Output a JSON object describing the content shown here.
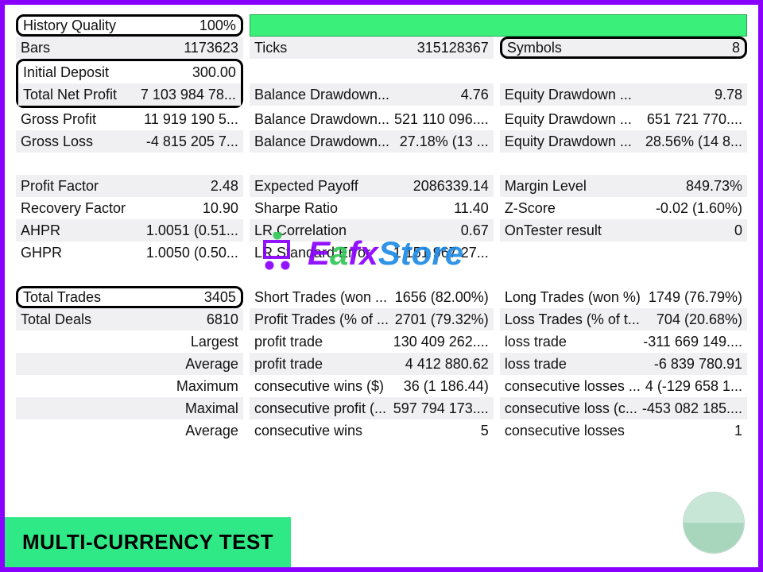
{
  "colors": {
    "border": "#8a00ff",
    "badge_bg": "#2fe986",
    "green_bar_bg": "#3bf07a",
    "green_bar_border": "#1fa84e",
    "alt_row": "#f0f0f2",
    "highlight_border": "#000000"
  },
  "header": {
    "history_quality": {
      "label": "History Quality",
      "value": "100%"
    },
    "bars": {
      "label": "Bars",
      "value": "1173623"
    },
    "ticks": {
      "label": "Ticks",
      "value": "315128367"
    },
    "symbols": {
      "label": "Symbols",
      "value": "8"
    }
  },
  "deposit": {
    "initial": {
      "label": "Initial Deposit",
      "value": "300.00"
    },
    "total_net_profit": {
      "label": "Total Net Profit",
      "value": "7 103 984 78..."
    },
    "balance_dd_1": {
      "label": "Balance Drawdown...",
      "value": "4.76"
    },
    "equity_dd_1": {
      "label": "Equity Drawdown ...",
      "value": "9.78"
    },
    "gross_profit": {
      "label": "Gross Profit",
      "value": "11 919 190 5..."
    },
    "balance_dd_2": {
      "label": "Balance Drawdown...",
      "value": "521 110 096...."
    },
    "equity_dd_2": {
      "label": "Equity Drawdown ...",
      "value": "651 721 770...."
    },
    "gross_loss": {
      "label": "Gross Loss",
      "value": "-4 815 205 7..."
    },
    "balance_dd_3": {
      "label": "Balance Drawdown...",
      "value": "27.18% (13 ..."
    },
    "equity_dd_3": {
      "label": "Equity Drawdown ...",
      "value": "28.56% (14 8..."
    }
  },
  "stats": {
    "profit_factor": {
      "label": "Profit Factor",
      "value": "2.48"
    },
    "expected_payoff": {
      "label": "Expected Payoff",
      "value": "2086339.14"
    },
    "margin_level": {
      "label": "Margin Level",
      "value": "849.73%"
    },
    "recovery_factor": {
      "label": "Recovery Factor",
      "value": "10.90"
    },
    "sharpe_ratio": {
      "label": "Sharpe Ratio",
      "value": "11.40"
    },
    "z_score": {
      "label": "Z-Score",
      "value": "-0.02 (1.60%)"
    },
    "ahpr": {
      "label": "AHPR",
      "value": "1.0051 (0.51..."
    },
    "lr_corr": {
      "label": "LR Correlation",
      "value": "0.67"
    },
    "ontester": {
      "label": "OnTester result",
      "value": "0"
    },
    "ghpr": {
      "label": "GHPR",
      "value": "1.0050 (0.50..."
    },
    "lr_std": {
      "label": "LR Standard Error",
      "value": "1 151 967 27..."
    }
  },
  "trades": {
    "total_trades": {
      "label": "Total Trades",
      "value": "3405"
    },
    "short_trades": {
      "label": "Short Trades (won ...",
      "value": "1656 (82.00%)"
    },
    "long_trades": {
      "label": "Long Trades (won %)",
      "value": "1749 (76.79%)"
    },
    "total_deals": {
      "label": "Total Deals",
      "value": "6810"
    },
    "profit_trades": {
      "label": "Profit Trades (% of ...",
      "value": "2701 (79.32%)"
    },
    "loss_trades": {
      "label": "Loss Trades (% of t...",
      "value": "704 (20.68%)"
    },
    "largest_label": "Largest",
    "largest_profit": {
      "label": "profit trade",
      "value": "130 409 262...."
    },
    "largest_loss": {
      "label": "loss trade",
      "value": "-311 669 149...."
    },
    "average_label": "Average",
    "average_profit": {
      "label": "profit trade",
      "value": "4 412 880.62"
    },
    "average_loss": {
      "label": "loss trade",
      "value": "-6 839 780.91"
    },
    "maximum_label": "Maximum",
    "max_wins": {
      "label": "consecutive wins ($)",
      "value": "36 (1 186.44)"
    },
    "max_losses": {
      "label": "consecutive losses ...",
      "value": "4 (-129 658 1..."
    },
    "maximal_label": "Maximal",
    "maximal_profit": {
      "label": "consecutive profit (...",
      "value": "597 794 173...."
    },
    "maximal_loss": {
      "label": "consecutive loss (c...",
      "value": "-453 082 185...."
    },
    "average2_label": "Average",
    "avg_cons_wins": {
      "label": "consecutive wins",
      "value": "5"
    },
    "avg_cons_losses": {
      "label": "consecutive losses",
      "value": "1"
    }
  },
  "badge": "MULTI-CURRENCY TEST",
  "watermark": {
    "e": "E",
    "a": "a",
    "fx": "fx",
    "store": "Store"
  }
}
